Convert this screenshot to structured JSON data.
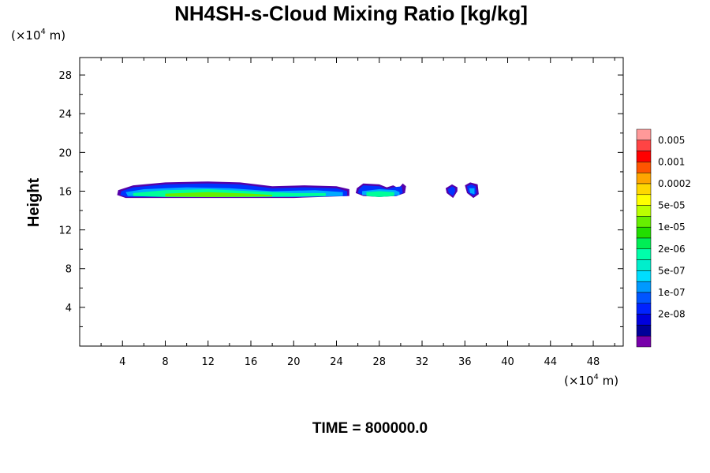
{
  "chart_data": {
    "type": "heatmap",
    "title": "NH4SH-s-Cloud Mixing Ratio [kg/kg]",
    "ylabel": "Height",
    "x_unit": {
      "prefix": "(×10",
      "exp": "4",
      "suffix": " m)"
    },
    "y_unit": {
      "prefix": "(×10",
      "exp": "4",
      "suffix": " m)"
    },
    "footer": "TIME = 800000.0",
    "xlim": [
      0,
      50.8
    ],
    "ylim": [
      0,
      29.8
    ],
    "x_ticks": [
      4,
      8,
      12,
      16,
      20,
      24,
      28,
      32,
      36,
      40,
      44,
      48
    ],
    "y_ticks": [
      4,
      8,
      12,
      16,
      20,
      24,
      28
    ],
    "colorbar": {
      "colors": [
        "#ff9999",
        "#ff4444",
        "#ff0000",
        "#ff5500",
        "#ffa500",
        "#ffd700",
        "#ffff00",
        "#bbff00",
        "#66ee00",
        "#22dd00",
        "#00ee55",
        "#00ffaa",
        "#00eecc",
        "#00ddff",
        "#0099ff",
        "#0055ff",
        "#0022ff",
        "#0000dd",
        "#000099",
        "#7700aa"
      ],
      "labels": [
        "0.005",
        "0.001",
        "0.0002",
        "5e-05",
        "1e-05",
        "2e-06",
        "5e-07",
        "1e-07",
        "2e-08"
      ]
    },
    "cloud_layers": [
      {
        "level": "outer",
        "color": "#5500aa",
        "blobs": [
          {
            "top": [
              [
                3.6,
                16.1
              ],
              [
                5,
                16.6
              ],
              [
                8,
                16.9
              ],
              [
                12,
                17.0
              ],
              [
                15,
                16.9
              ],
              [
                18,
                16.5
              ],
              [
                21,
                16.6
              ],
              [
                24,
                16.5
              ],
              [
                25.2,
                16.2
              ]
            ],
            "bottom": [
              [
                25.2,
                15.5
              ],
              [
                20,
                15.3
              ],
              [
                10,
                15.3
              ],
              [
                4.3,
                15.3
              ],
              [
                3.5,
                15.6
              ]
            ]
          },
          {
            "top": [
              [
                25.9,
                16.3
              ],
              [
                26.5,
                16.8
              ],
              [
                28,
                16.7
              ],
              [
                28.7,
                16.4
              ],
              [
                29.3,
                16.6
              ],
              [
                29.8,
                16.3
              ],
              [
                30.2,
                16.8
              ],
              [
                30.5,
                16.5
              ]
            ],
            "bottom": [
              [
                30.4,
                15.8
              ],
              [
                29.6,
                15.5
              ],
              [
                28,
                15.4
              ],
              [
                26.5,
                15.5
              ],
              [
                25.8,
                15.8
              ]
            ]
          },
          {
            "top": [
              [
                34.2,
                16.3
              ],
              [
                34.8,
                16.7
              ],
              [
                35.3,
                16.4
              ]
            ],
            "bottom": [
              [
                35.3,
                16.0
              ],
              [
                34.9,
                15.3
              ],
              [
                34.3,
                15.8
              ]
            ]
          },
          {
            "top": [
              [
                36.0,
                16.6
              ],
              [
                36.5,
                16.9
              ],
              [
                37.2,
                16.7
              ]
            ],
            "bottom": [
              [
                37.3,
                15.7
              ],
              [
                36.8,
                15.3
              ],
              [
                36.2,
                15.8
              ]
            ]
          }
        ]
      },
      {
        "level": "1e-07",
        "color": "#0033ff",
        "blobs": [
          {
            "top": [
              [
                3.9,
                16.0
              ],
              [
                5,
                16.4
              ],
              [
                8,
                16.7
              ],
              [
                12,
                16.8
              ],
              [
                15,
                16.7
              ],
              [
                18,
                16.3
              ],
              [
                21,
                16.4
              ],
              [
                24,
                16.3
              ],
              [
                25.0,
                16.0
              ]
            ],
            "bottom": [
              [
                25.0,
                15.5
              ],
              [
                20,
                15.4
              ],
              [
                10,
                15.4
              ],
              [
                4.4,
                15.4
              ],
              [
                3.8,
                15.6
              ]
            ]
          },
          {
            "top": [
              [
                26.1,
                16.2
              ],
              [
                26.5,
                16.6
              ],
              [
                28,
                16.5
              ],
              [
                28.7,
                16.2
              ],
              [
                29.3,
                16.4
              ],
              [
                30.1,
                16.5
              ]
            ],
            "bottom": [
              [
                30.2,
                15.8
              ],
              [
                29.6,
                15.5
              ],
              [
                28,
                15.5
              ],
              [
                26.5,
                15.6
              ],
              [
                26.0,
                15.8
              ]
            ]
          },
          {
            "top": [
              [
                34.4,
                16.2
              ],
              [
                34.8,
                16.5
              ],
              [
                35.1,
                16.3
              ]
            ],
            "bottom": [
              [
                35.1,
                16.0
              ],
              [
                34.9,
                15.5
              ],
              [
                34.5,
                15.8
              ]
            ]
          },
          {
            "top": [
              [
                36.2,
                16.5
              ],
              [
                36.6,
                16.7
              ],
              [
                37.0,
                16.5
              ]
            ],
            "bottom": [
              [
                37.1,
                15.8
              ],
              [
                36.8,
                15.5
              ],
              [
                36.3,
                15.9
              ]
            ]
          }
        ]
      },
      {
        "level": "5e-07",
        "color": "#00aaff",
        "blobs": [
          {
            "top": [
              [
                4.3,
                15.9
              ],
              [
                6,
                16.2
              ],
              [
                10,
                16.4
              ],
              [
                14,
                16.3
              ],
              [
                18,
                16.0
              ],
              [
                22,
                16.1
              ],
              [
                24.6,
                15.9
              ]
            ],
            "bottom": [
              [
                24.6,
                15.5
              ],
              [
                20,
                15.4
              ],
              [
                10,
                15.4
              ],
              [
                4.5,
                15.5
              ]
            ]
          },
          {
            "top": [
              [
                26.4,
                16.0
              ],
              [
                28,
                16.2
              ],
              [
                29.5,
                16.1
              ],
              [
                29.9,
                15.9
              ]
            ],
            "bottom": [
              [
                29.9,
                15.6
              ],
              [
                28,
                15.5
              ],
              [
                26.4,
                15.6
              ]
            ]
          },
          {
            "top": [
              [
                36.4,
                16.3
              ],
              [
                36.9,
                16.3
              ]
            ],
            "bottom": [
              [
                36.9,
                15.7
              ],
              [
                36.5,
                15.8
              ]
            ]
          }
        ]
      },
      {
        "level": "2e-06",
        "color": "#00ff99",
        "blobs": [
          {
            "top": [
              [
                5.0,
                15.8
              ],
              [
                8,
                16.1
              ],
              [
                12,
                16.2
              ],
              [
                16,
                16.0
              ],
              [
                20,
                15.8
              ],
              [
                23,
                15.8
              ]
            ],
            "bottom": [
              [
                23,
                15.5
              ],
              [
                16,
                15.4
              ],
              [
                8,
                15.4
              ],
              [
                5.0,
                15.5
              ]
            ]
          },
          {
            "top": [
              [
                26.8,
                15.9
              ],
              [
                28,
                16.0
              ],
              [
                29.4,
                15.9
              ]
            ],
            "bottom": [
              [
                29.4,
                15.5
              ],
              [
                28,
                15.4
              ],
              [
                26.8,
                15.5
              ]
            ]
          }
        ]
      },
      {
        "level": "1e-05",
        "color": "#66ee00",
        "blobs": [
          {
            "top": [
              [
                8,
                15.75
              ],
              [
                12,
                15.9
              ],
              [
                16,
                15.75
              ],
              [
                18,
                15.6
              ]
            ],
            "bottom": [
              [
                18,
                15.45
              ],
              [
                12,
                15.4
              ],
              [
                8,
                15.45
              ]
            ]
          }
        ]
      }
    ]
  }
}
